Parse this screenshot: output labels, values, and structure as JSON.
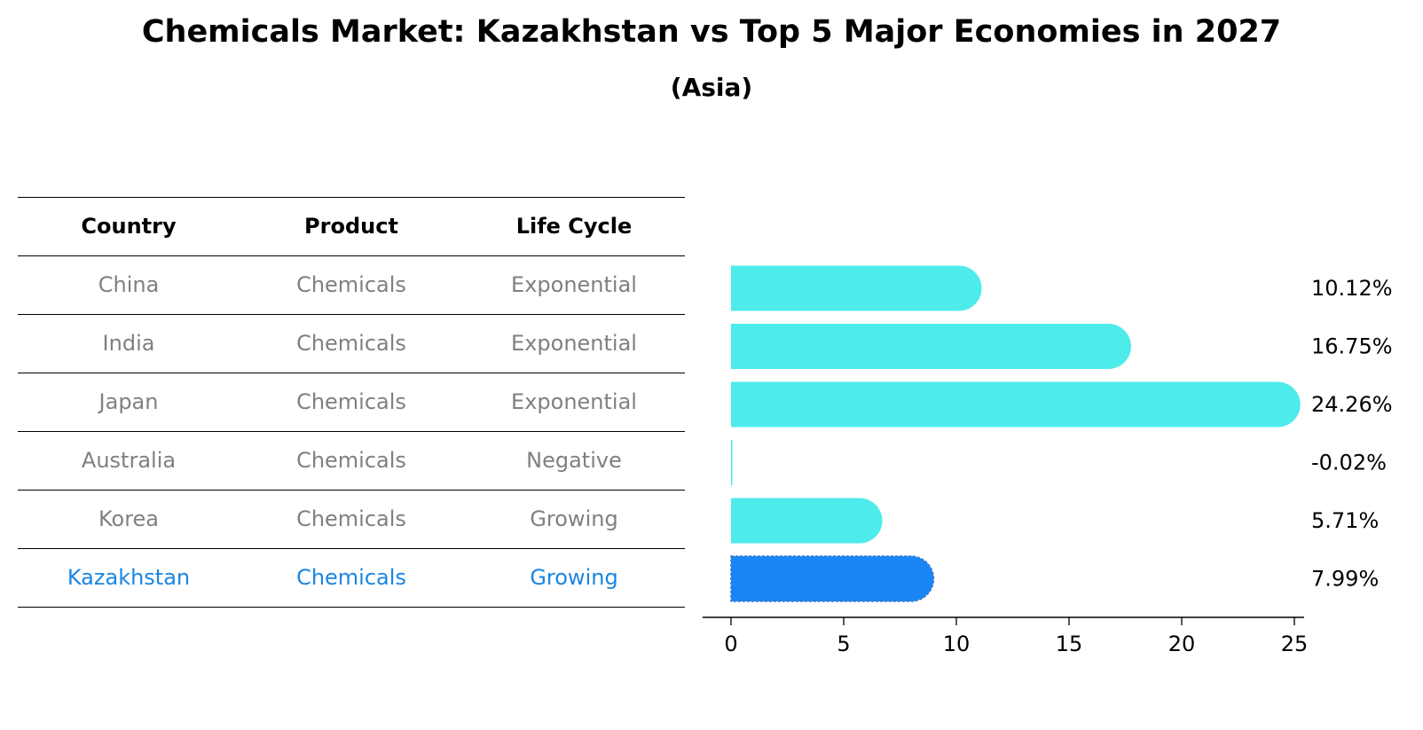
{
  "title": "Chemicals Market: Kazakhstan vs Top 5 Major Economies in 2027",
  "subtitle": "(Asia)",
  "table": {
    "headers": [
      "Country",
      "Product",
      "Life Cycle"
    ],
    "rows": [
      {
        "country": "China",
        "product": "Chemicals",
        "life_cycle": "Exponential"
      },
      {
        "country": "India",
        "product": "Chemicals",
        "life_cycle": "Exponential"
      },
      {
        "country": "Japan",
        "product": "Chemicals",
        "life_cycle": "Exponential"
      },
      {
        "country": "Australia",
        "product": "Chemicals",
        "life_cycle": "Negative"
      },
      {
        "country": "Korea",
        "product": "Chemicals",
        "life_cycle": "Growing"
      },
      {
        "country": "Kazakhstan",
        "product": "Chemicals",
        "life_cycle": "Growing"
      }
    ],
    "highlight_row": 5
  },
  "colors": {
    "bar": "#4deceb",
    "highlight": "#1a86f5",
    "highlight_text": "#1a86e2",
    "muted_text": "#808080"
  },
  "chart_data": {
    "type": "bar",
    "orientation": "horizontal",
    "title": "Chemicals Market: Kazakhstan vs Top 5 Major Economies in 2027",
    "subtitle": "(Asia)",
    "categories": [
      "China",
      "India",
      "Japan",
      "Australia",
      "Korea",
      "Kazakhstan"
    ],
    "values": [
      10.12,
      16.75,
      24.26,
      -0.02,
      5.71,
      7.99
    ],
    "value_labels": [
      "10.12%",
      "16.75%",
      "24.26%",
      "-0.02%",
      "5.71%",
      "7.99%"
    ],
    "highlight_index": 5,
    "xlim": [
      -1.3,
      25.5
    ],
    "xticks": [
      0,
      5,
      10,
      15,
      20,
      25
    ],
    "xlabel": "",
    "ylabel": "",
    "grid": false
  }
}
